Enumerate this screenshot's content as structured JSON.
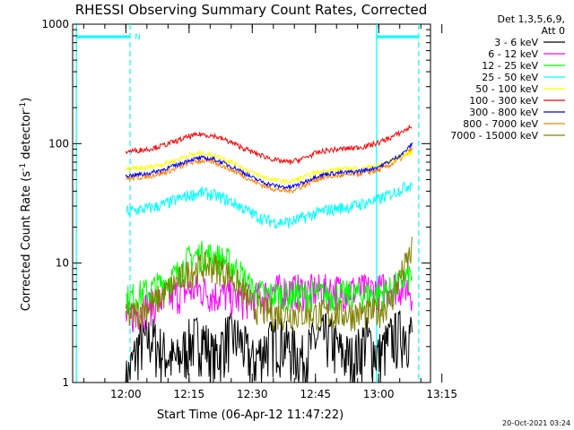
{
  "chart_data": {
    "type": "line",
    "title": "RHESSI Observing Summary Count Rates, Corrected",
    "xlabel": "Start Time (06-Apr-12 11:47:22)",
    "ylabel": "Corrected Count Rate (s",
    "ylabel_sup1": "-1",
    "ylabel_mid": " detector",
    "ylabel_sup2": "-1",
    "ylabel_end": ")",
    "timestamp": "20-Oct-2021 03:24",
    "yscale": "log",
    "ylim": [
      1,
      1000
    ],
    "yticks": [
      {
        "value": 1,
        "label": "1"
      },
      {
        "value": 10,
        "label": "10"
      },
      {
        "value": 100,
        "label": "100"
      },
      {
        "value": 1000,
        "label": "1000"
      }
    ],
    "xlim_minutes": [
      -12.633,
      72.3
    ],
    "xticks": [
      {
        "minute": 0,
        "label": "12:00"
      },
      {
        "minute": 15,
        "label": "12:15"
      },
      {
        "minute": 30,
        "label": "12:30"
      },
      {
        "minute": 45,
        "label": "12:45"
      },
      {
        "minute": 60,
        "label": "13:00"
      },
      {
        "minute": 75,
        "label": "13:15"
      }
    ],
    "legend": {
      "header1": "Det 1,3,5,6,9,",
      "header2": "Att 0",
      "placement": "right"
    },
    "night_lines": [
      -11.75,
      1,
      59.5,
      69.5
    ],
    "night_marker": "N",
    "time_minutes": [
      0,
      3,
      6,
      9,
      12,
      15,
      18,
      21,
      24,
      27,
      30,
      33,
      36,
      39,
      42,
      45,
      48,
      51,
      54,
      57,
      60,
      63,
      66,
      68
    ],
    "series": [
      {
        "name": "3 - 6 keV",
        "color": "#000000",
        "values": [
          1.0,
          2.1,
          2.4,
          1.8,
          1.5,
          2.2,
          2.5,
          1.6,
          2.5,
          2.3,
          1.5,
          2.0,
          2.5,
          2.0,
          1.6,
          2.3,
          2.5,
          1.8,
          1.6,
          2.4,
          1.7,
          2.4,
          2.8,
          2.6
        ]
      },
      {
        "name": "6 - 12 keV",
        "color": "#ff00ff",
        "values": [
          3.5,
          4.0,
          4.5,
          5.0,
          5.5,
          6.0,
          6.0,
          5.5,
          5.5,
          5.0,
          5.0,
          5.5,
          6.0,
          6.0,
          6.0,
          6.0,
          6.0,
          6.0,
          6.0,
          6.0,
          6.0,
          6.5,
          6.5,
          6.0
        ]
      },
      {
        "name": "12 - 25 keV",
        "color": "#00ff00",
        "values": [
          5.0,
          5.5,
          6.0,
          7.0,
          8.0,
          11.0,
          12.0,
          11.5,
          10.5,
          8.5,
          6.0,
          5.5,
          5.5,
          5.5,
          5.5,
          5.5,
          5.5,
          5.5,
          5.5,
          5.5,
          5.5,
          6.0,
          7.5,
          8.0
        ]
      },
      {
        "name": "25 - 50 keV",
        "color": "#00ffff",
        "values": [
          27,
          28,
          29,
          31,
          34,
          37,
          39,
          37,
          34,
          30,
          26,
          23,
          22,
          22,
          24,
          26,
          28,
          29,
          30,
          32,
          34,
          38,
          43,
          47
        ]
      },
      {
        "name": "50 - 100 keV",
        "color": "#ffff00",
        "values": [
          61,
          62,
          64,
          68,
          73,
          80,
          83,
          80,
          73,
          65,
          57,
          52,
          49,
          48,
          52,
          57,
          60,
          61,
          62,
          63,
          66,
          72,
          80,
          84
        ]
      },
      {
        "name": "100 - 300 keV",
        "color": "#ff0000",
        "values": [
          86,
          88,
          91,
          97,
          105,
          115,
          120,
          116,
          106,
          95,
          85,
          78,
          72,
          70,
          75,
          83,
          88,
          90,
          92,
          95,
          102,
          113,
          128,
          140
        ]
      },
      {
        "name": "300 - 800 keV",
        "color": "#0000ff",
        "values": [
          54,
          55,
          57,
          61,
          66,
          73,
          76,
          74,
          67,
          60,
          52,
          47,
          44,
          43,
          47,
          53,
          56,
          57,
          58,
          60,
          64,
          72,
          84,
          100
        ]
      },
      {
        "name": "800 - 7000 keV",
        "color": "#ff8000",
        "values": [
          51,
          52,
          54,
          57,
          62,
          69,
          72,
          70,
          63,
          56,
          49,
          44,
          41,
          40,
          44,
          50,
          53,
          54,
          55,
          57,
          60,
          67,
          78,
          90
        ]
      },
      {
        "name": "7000 - 15000 keV",
        "color": "#808000",
        "values": [
          3.5,
          4.0,
          4.5,
          5.5,
          7.0,
          8.5,
          9.5,
          9.5,
          8.5,
          6.5,
          4.5,
          4.0,
          3.8,
          3.8,
          3.8,
          3.8,
          3.8,
          3.8,
          3.8,
          3.8,
          4.0,
          5.0,
          9.0,
          13.0
        ]
      }
    ]
  }
}
